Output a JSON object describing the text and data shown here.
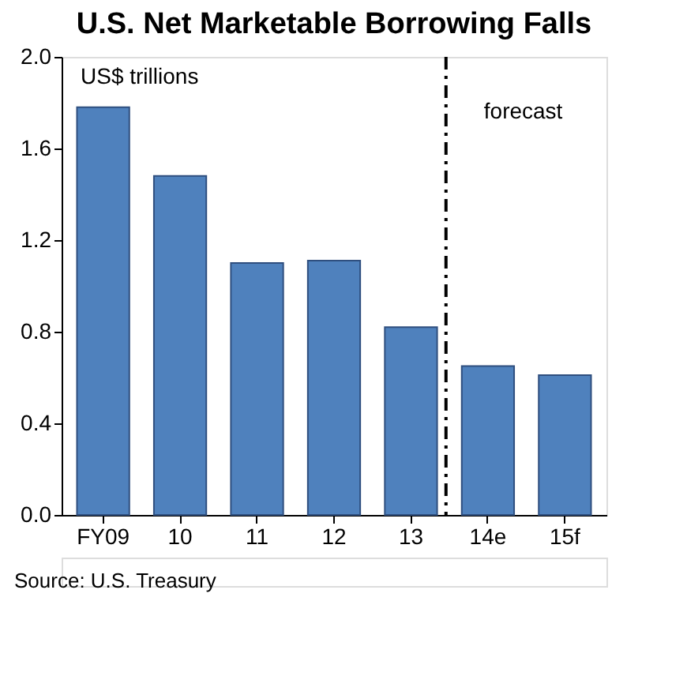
{
  "chart_data": {
    "type": "bar",
    "title": "U.S. Net Marketable Borrowing Falls",
    "ylabel": "US$ trillions",
    "categories": [
      "FY09",
      "10",
      "11",
      "12",
      "13",
      "14e",
      "15f"
    ],
    "values": [
      1.78,
      1.48,
      1.1,
      1.11,
      0.82,
      0.65,
      0.61
    ],
    "color": "#4f81bd",
    "ylim": [
      0,
      2.0
    ],
    "yticks": [
      {
        "value": 0,
        "label": "0.0"
      },
      {
        "value": 0.4,
        "label": "0.4"
      },
      {
        "value": 0.8,
        "label": "0.8"
      },
      {
        "value": 1.2,
        "label": "1.2"
      },
      {
        "value": 1.6,
        "label": "1.6"
      },
      {
        "value": 2.0,
        "label": "2.0"
      }
    ],
    "grid": false,
    "ref_lines": [
      {
        "axis": "x",
        "value": "14e",
        "label": "forecast",
        "color": "#000000",
        "line_style": "dashed"
      }
    ],
    "annotations": [
      "Source: U.S. Treasury"
    ]
  }
}
